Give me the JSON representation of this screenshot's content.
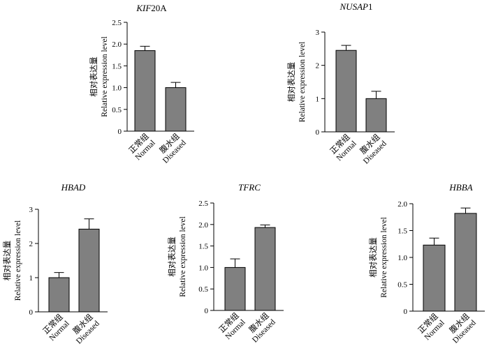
{
  "chart_data": [
    {
      "type": "bar",
      "title": "KIF20A",
      "title_italic_part": "KIF",
      "title_plain_part": "20A",
      "ylabel_cn": "相对表达量",
      "ylabel_en": "Relative expression level",
      "ylim": [
        0,
        2.5
      ],
      "yticks": [
        "0",
        "0.5",
        "1.0",
        "1.5",
        "2.0",
        "2.5"
      ],
      "categories": [
        {
          "cn": "正常组",
          "en": "Normal"
        },
        {
          "cn": "腹水组",
          "en": "Diseased"
        }
      ],
      "values": [
        1.85,
        1.0
      ],
      "errors": [
        0.1,
        0.12
      ],
      "bar_color": "#808080"
    },
    {
      "type": "bar",
      "title": "NUSAP1",
      "title_italic_part": "NUSAP",
      "title_plain_part": "1",
      "ylabel_cn": "相对表达量",
      "ylabel_en": "Relative expression level",
      "ylim": [
        0,
        3
      ],
      "yticks": [
        "0",
        "1",
        "2",
        "3"
      ],
      "categories": [
        {
          "cn": "正常组",
          "en": "Normal"
        },
        {
          "cn": "腹水组",
          "en": "Diseased"
        }
      ],
      "values": [
        2.45,
        1.0
      ],
      "errors": [
        0.15,
        0.22
      ],
      "bar_color": "#808080"
    },
    {
      "type": "bar",
      "title": "HBAD",
      "title_italic_part": "HBAD",
      "title_plain_part": "",
      "ylabel_cn": "相对表达量",
      "ylabel_en": "Relative expression level",
      "ylim": [
        0,
        3
      ],
      "yticks": [
        "0",
        "1",
        "2",
        "3"
      ],
      "categories": [
        {
          "cn": "正常组",
          "en": "Normal"
        },
        {
          "cn": "腹水组",
          "en": "Diseased"
        }
      ],
      "values": [
        1.0,
        2.42
      ],
      "errors": [
        0.15,
        0.3
      ],
      "bar_color": "#808080"
    },
    {
      "type": "bar",
      "title": "TFRC",
      "title_italic_part": "TFRC",
      "title_plain_part": "",
      "ylabel_cn": "相对表达量",
      "ylabel_en": "Relative expression level",
      "ylim": [
        0,
        2.5
      ],
      "yticks": [
        "0",
        "0.5",
        "1.0",
        "1.5",
        "2.0",
        "2.5"
      ],
      "categories": [
        {
          "cn": "正常组",
          "en": "Normal"
        },
        {
          "cn": "腹水组",
          "en": "Diseased"
        }
      ],
      "values": [
        1.0,
        1.93
      ],
      "errors": [
        0.2,
        0.06
      ],
      "bar_color": "#808080"
    },
    {
      "type": "bar",
      "title": "HBBA",
      "title_italic_part": "HBBA",
      "title_plain_part": "",
      "ylabel_cn": "相对表达量",
      "ylabel_en": "Relative expression level",
      "ylim": [
        0,
        2.0
      ],
      "yticks": [
        "0",
        "0.5",
        "1.0",
        "1.5",
        "2.0"
      ],
      "categories": [
        {
          "cn": "正常组",
          "en": "Normal"
        },
        {
          "cn": "腹水组",
          "en": "Diseased"
        }
      ],
      "values": [
        1.23,
        1.82
      ],
      "errors": [
        0.13,
        0.1
      ],
      "bar_color": "#808080"
    }
  ]
}
